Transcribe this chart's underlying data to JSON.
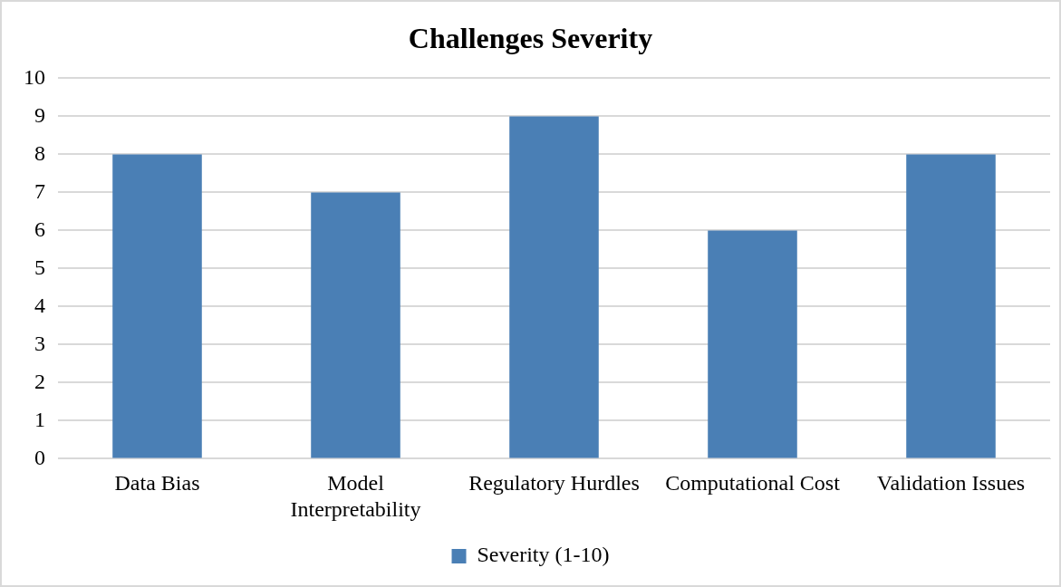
{
  "chart_data": {
    "type": "bar",
    "title": "Challenges Severity",
    "categories": [
      "Data Bias",
      "Model Interpretability",
      "Regulatory Hurdles",
      "Computational Cost",
      "Validation Issues"
    ],
    "series": [
      {
        "name": "Severity (1-10)",
        "color": "#4a7fb5",
        "values": [
          8,
          7,
          9,
          6,
          8
        ]
      }
    ],
    "ylim": [
      0,
      10
    ],
    "yticks": [
      0,
      1,
      2,
      3,
      4,
      5,
      6,
      7,
      8,
      9,
      10
    ],
    "grid": "y",
    "legend": "bottom"
  }
}
